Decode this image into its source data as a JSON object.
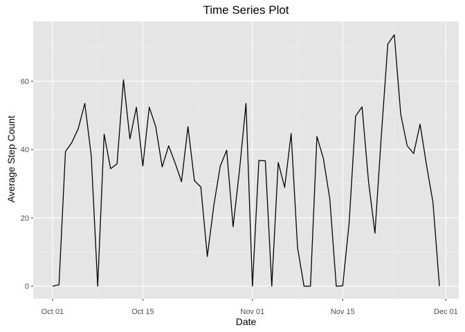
{
  "chart_data": {
    "type": "line",
    "title": "Time Series Plot",
    "xlabel": "Date",
    "ylabel": "Average Step Count",
    "grid": true,
    "legend": "none",
    "x_tick_labels": [
      "Oct 01",
      "Oct 15",
      "Nov 01",
      "Nov 15",
      "Dec 01"
    ],
    "x_tick_dates": [
      "2012-10-01",
      "2012-10-15",
      "2012-11-01",
      "2012-11-15",
      "2012-12-01"
    ],
    "xlim": [
      "2012-09-28",
      "2012-12-03"
    ],
    "y_ticks": [
      0,
      20,
      40,
      60
    ],
    "ylim": [
      -3.7,
      77.5
    ],
    "series": [
      {
        "x": [
          "2012-10-01",
          "2012-10-02",
          "2012-10-03",
          "2012-10-04",
          "2012-10-05",
          "2012-10-06",
          "2012-10-07",
          "2012-10-08",
          "2012-10-09",
          "2012-10-10",
          "2012-10-11",
          "2012-10-12",
          "2012-10-13",
          "2012-10-14",
          "2012-10-15",
          "2012-10-16",
          "2012-10-17",
          "2012-10-18",
          "2012-10-19",
          "2012-10-20",
          "2012-10-21",
          "2012-10-22",
          "2012-10-23",
          "2012-10-24",
          "2012-10-25",
          "2012-10-26",
          "2012-10-27",
          "2012-10-28",
          "2012-10-29",
          "2012-10-30",
          "2012-10-31",
          "2012-11-01",
          "2012-11-02",
          "2012-11-03",
          "2012-11-04",
          "2012-11-05",
          "2012-11-06",
          "2012-11-07",
          "2012-11-08",
          "2012-11-09",
          "2012-11-10",
          "2012-11-11",
          "2012-11-12",
          "2012-11-13",
          "2012-11-14",
          "2012-11-15",
          "2012-11-16",
          "2012-11-17",
          "2012-11-18",
          "2012-11-19",
          "2012-11-20",
          "2012-11-21",
          "2012-11-22",
          "2012-11-23",
          "2012-11-24",
          "2012-11-25",
          "2012-11-26",
          "2012-11-27",
          "2012-11-28",
          "2012-11-29",
          "2012-11-30"
        ],
        "values": [
          0,
          0.4,
          39.4,
          42.1,
          46.2,
          53.5,
          38.2,
          0,
          44.5,
          34.4,
          35.8,
          60.4,
          43.1,
          52.4,
          35.2,
          52.4,
          46.7,
          34.9,
          41.1,
          36.1,
          30.6,
          46.7,
          30.9,
          29.0,
          8.7,
          23.5,
          35.1,
          39.8,
          17.4,
          34.1,
          53.5,
          0,
          36.8,
          36.7,
          0,
          36.2,
          28.9,
          44.7,
          11.2,
          0,
          0,
          43.8,
          37.4,
          25.5,
          0,
          0.1,
          18.6,
          49.8,
          52.5,
          30.7,
          15.5,
          44.4,
          70.9,
          73.6,
          50.3,
          41.1,
          38.8,
          47.4,
          35.4,
          24.5,
          0
        ]
      }
    ]
  },
  "colors": {
    "panel_background": "#e5e5e5",
    "grid_major": "#ffffff",
    "grid_minor": "#f2f2f2",
    "line": "#000000",
    "tick_text": "#4d4d4d"
  }
}
